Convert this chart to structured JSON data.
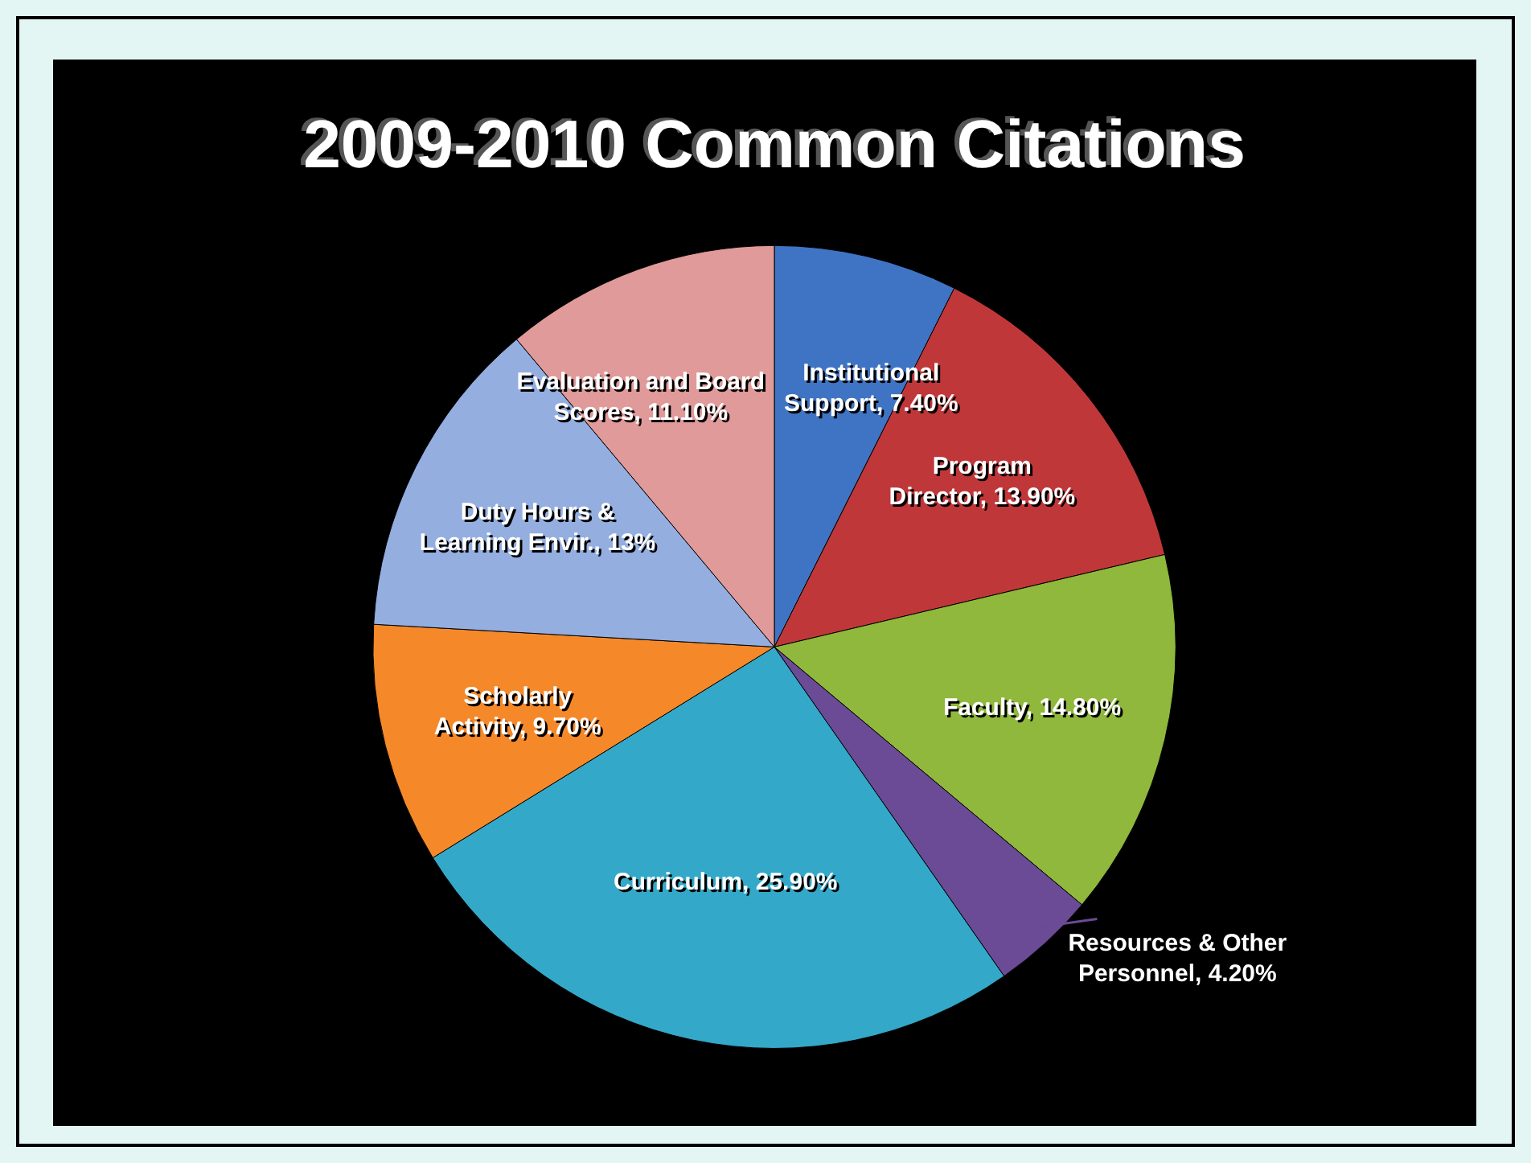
{
  "chart_data": {
    "type": "pie",
    "title": "2009-2010 Common Citations",
    "categories": [
      "Institutional Support",
      "Program Director",
      "Faculty",
      "Resources & Other Personnel",
      "Curriculum",
      "Scholarly Activity",
      "Duty Hours & Learning Envir.",
      "Evaluation and Board Scores"
    ],
    "values": [
      7.4,
      13.9,
      14.8,
      4.2,
      25.9,
      9.7,
      13,
      11.1
    ],
    "value_labels": [
      "7.40%",
      "13.90%",
      "14.80%",
      "4.20%",
      "25.90%",
      "9.70%",
      "13%",
      "11.10%"
    ],
    "colors": [
      "#3f74c4",
      "#c0373a",
      "#8fb83c",
      "#6b4a96",
      "#34a8c8",
      "#f5892a",
      "#94aee0",
      "#e09a9a"
    ],
    "legend": false
  }
}
